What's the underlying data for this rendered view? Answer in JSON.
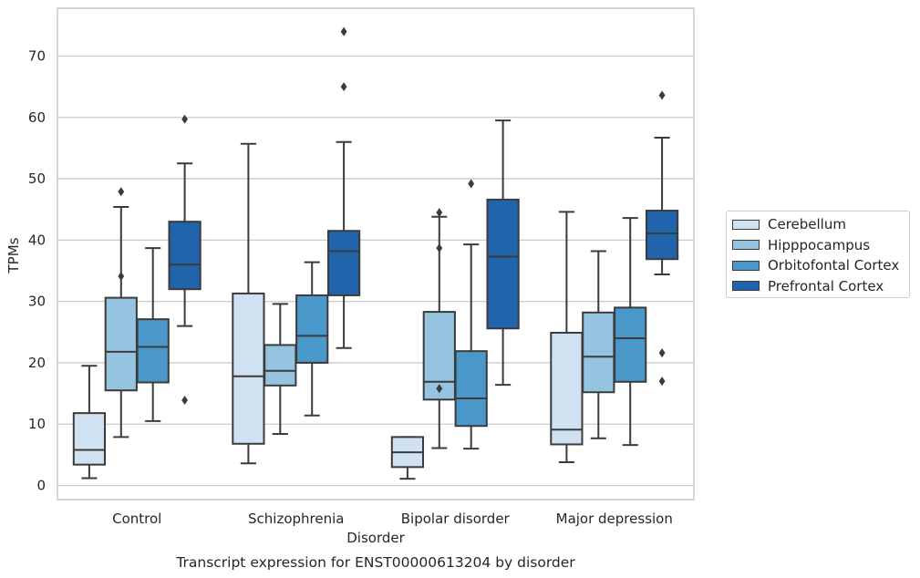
{
  "chart_data": {
    "type": "box",
    "title": "Transcript expression for ENST00000613204 by disorder",
    "xlabel": "Disorder",
    "ylabel": "TPMs",
    "ylim": [
      -2.3,
      77.8
    ],
    "yticks": [
      0,
      10,
      20,
      30,
      40,
      50,
      60,
      70
    ],
    "categories": [
      "Control",
      "Schizophrenia",
      "Bipolar disorder",
      "Major depression"
    ],
    "grid": "horizontal",
    "legend_position": "right",
    "series": [
      {
        "name": "Cerebellum",
        "color": "#d0e1f2",
        "boxes": [
          {
            "min": 1.2,
            "q1": 3.4,
            "median": 5.8,
            "q3": 11.8,
            "max": 19.5,
            "outliers": []
          },
          {
            "min": 3.6,
            "q1": 6.8,
            "median": 17.8,
            "q3": 31.3,
            "max": 55.7,
            "outliers": []
          },
          {
            "min": 1.1,
            "q1": 3.0,
            "median": 5.4,
            "q3": 7.9,
            "max": 7.9,
            "outliers": []
          },
          {
            "min": 3.8,
            "q1": 6.7,
            "median": 9.1,
            "q3": 24.9,
            "max": 44.6,
            "outliers": []
          }
        ]
      },
      {
        "name": "Hipppocampus",
        "color": "#94c4df",
        "boxes": [
          {
            "min": 7.9,
            "q1": 15.5,
            "median": 21.8,
            "q3": 30.6,
            "max": 45.4,
            "outliers": [
              34.1,
              47.9
            ]
          },
          {
            "min": 8.4,
            "q1": 16.3,
            "median": 18.7,
            "q3": 22.9,
            "max": 29.6,
            "outliers": []
          },
          {
            "min": 6.1,
            "q1": 14.0,
            "median": 16.9,
            "q3": 28.3,
            "max": 43.8,
            "outliers": [
              15.8,
              38.7,
              44.5
            ]
          },
          {
            "min": 7.7,
            "q1": 15.2,
            "median": 21.0,
            "q3": 28.2,
            "max": 38.2,
            "outliers": []
          }
        ]
      },
      {
        "name": "Orbitofontal Cortex",
        "color": "#4a98c9",
        "boxes": [
          {
            "min": 10.5,
            "q1": 16.8,
            "median": 22.6,
            "q3": 27.1,
            "max": 38.7,
            "outliers": []
          },
          {
            "min": 11.4,
            "q1": 20.0,
            "median": 24.4,
            "q3": 31.0,
            "max": 36.4,
            "outliers": []
          },
          {
            "min": 6.0,
            "q1": 9.7,
            "median": 14.2,
            "q3": 21.9,
            "max": 39.3,
            "outliers": [
              49.2
            ]
          },
          {
            "min": 6.6,
            "q1": 16.9,
            "median": 24.0,
            "q3": 29.0,
            "max": 43.6,
            "outliers": []
          }
        ]
      },
      {
        "name": "Prefrontal Cortex",
        "color": "#2164ab",
        "boxes": [
          {
            "min": 26.0,
            "q1": 32.0,
            "median": 36.0,
            "q3": 43.0,
            "max": 52.5,
            "outliers": [
              13.9,
              59.7
            ]
          },
          {
            "min": 22.4,
            "q1": 31.0,
            "median": 38.2,
            "q3": 41.5,
            "max": 56.0,
            "outliers": [
              65.0,
              74.0
            ]
          },
          {
            "min": 16.4,
            "q1": 25.6,
            "median": 37.3,
            "q3": 46.6,
            "max": 59.5,
            "outliers": []
          },
          {
            "min": 34.4,
            "q1": 36.9,
            "median": 41.1,
            "q3": 44.8,
            "max": 56.7,
            "outliers": [
              17.0,
              21.6,
              63.6
            ]
          }
        ]
      }
    ]
  }
}
